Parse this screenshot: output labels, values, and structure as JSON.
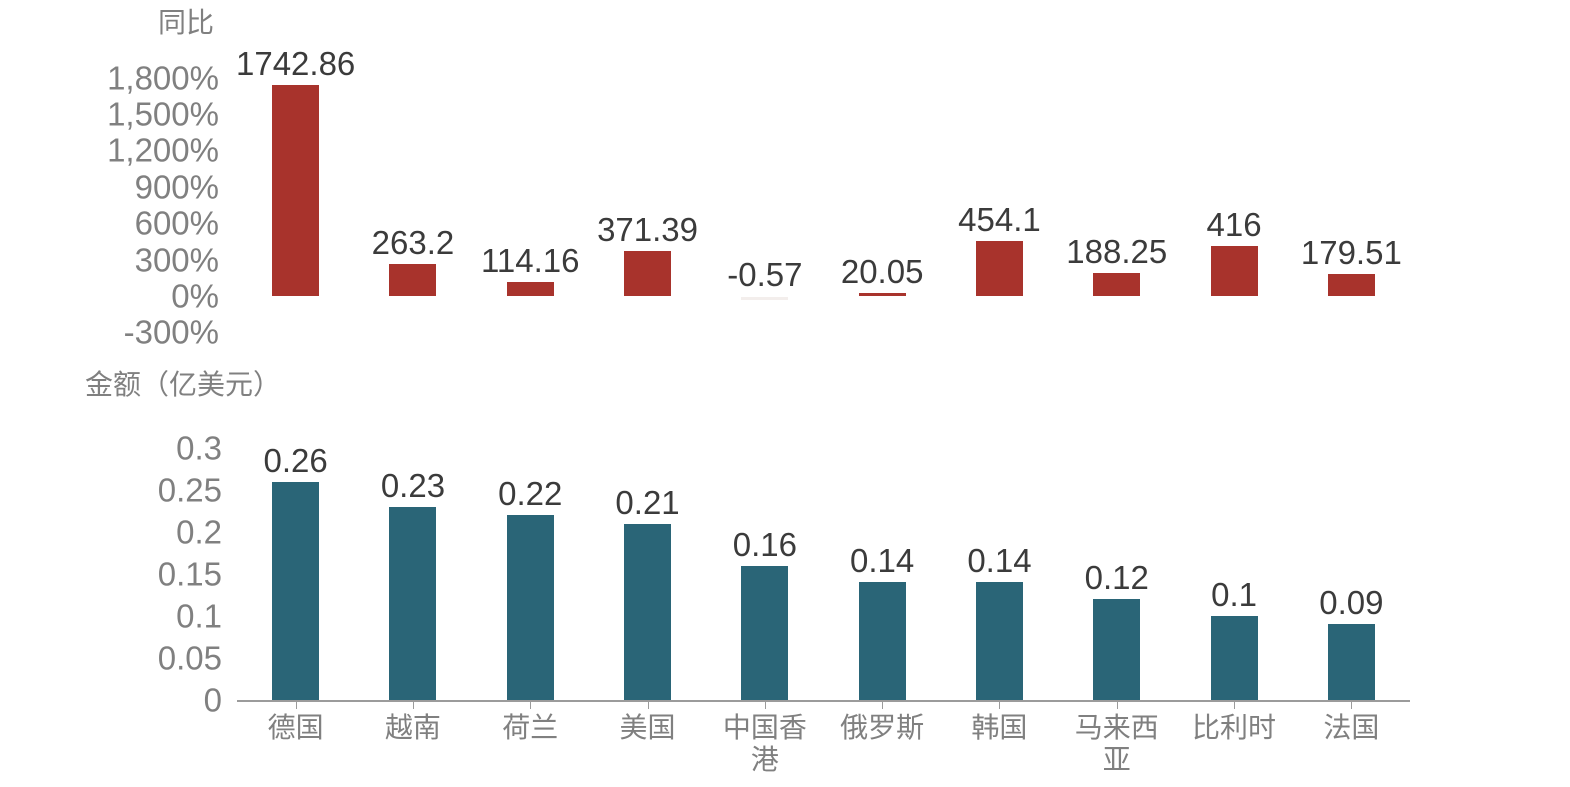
{
  "page": {
    "background": "#ffffff"
  },
  "colors": {
    "yoy_bar": "#a8332c",
    "yoy_negative_faint_bar": "#f3eeec",
    "amount_bar": "#2a6577",
    "axis_text": "#808080",
    "data_label_text": "#3b3b3b",
    "axis_line": "#9b9b9b"
  },
  "categories": [
    "德国",
    "越南",
    "荷兰",
    "美国",
    "中国香港",
    "俄罗斯",
    "韩国",
    "马来西亚",
    "比利时",
    "法国"
  ],
  "chart_data": [
    {
      "id": "yoy",
      "type": "bar",
      "title": "同比",
      "categories": [
        "德国",
        "越南",
        "荷兰",
        "美国",
        "中国香港",
        "俄罗斯",
        "韩国",
        "马来西亚",
        "比利时",
        "法国"
      ],
      "values": [
        1742.86,
        263.2,
        114.16,
        371.39,
        -0.57,
        20.05,
        454.1,
        188.25,
        416,
        179.51
      ],
      "value_labels": [
        "1742.86",
        "263.2",
        "114.16",
        "371.39",
        "-0.57",
        "20.05",
        "454.1",
        "188.25",
        "416",
        "179.51"
      ],
      "y_tick_labels": [
        "1,800%",
        "1,500%",
        "1,200%",
        "900%",
        "600%",
        "300%",
        "0%",
        "-300%"
      ],
      "y_tick_values": [
        1800,
        1500,
        1200,
        900,
        600,
        300,
        0,
        -300
      ],
      "ylim": [
        -300,
        1800
      ],
      "unit": "%",
      "xlabel": "",
      "ylabel": "同比",
      "grid": false,
      "legend_position": "none",
      "show_x_labels": false
    },
    {
      "id": "amount",
      "type": "bar",
      "title": "金额（亿美元）",
      "categories": [
        "德国",
        "越南",
        "荷兰",
        "美国",
        "中国香港",
        "俄罗斯",
        "韩国",
        "马来西亚",
        "比利时",
        "法国"
      ],
      "values": [
        0.26,
        0.23,
        0.22,
        0.21,
        0.16,
        0.14,
        0.14,
        0.12,
        0.1,
        0.09
      ],
      "value_labels": [
        "0.26",
        "0.23",
        "0.22",
        "0.21",
        "0.16",
        "0.14",
        "0.14",
        "0.12",
        "0.1",
        "0.09"
      ],
      "y_tick_labels": [
        "0.3",
        "0.25",
        "0.2",
        "0.15",
        "0.1",
        "0.05",
        "0"
      ],
      "y_tick_values": [
        0.3,
        0.25,
        0.2,
        0.15,
        0.1,
        0.05,
        0
      ],
      "ylim": [
        0,
        0.3
      ],
      "unit": "亿美元",
      "xlabel": "",
      "ylabel": "金额（亿美元）",
      "grid": false,
      "legend_position": "none",
      "show_x_labels": true
    }
  ]
}
